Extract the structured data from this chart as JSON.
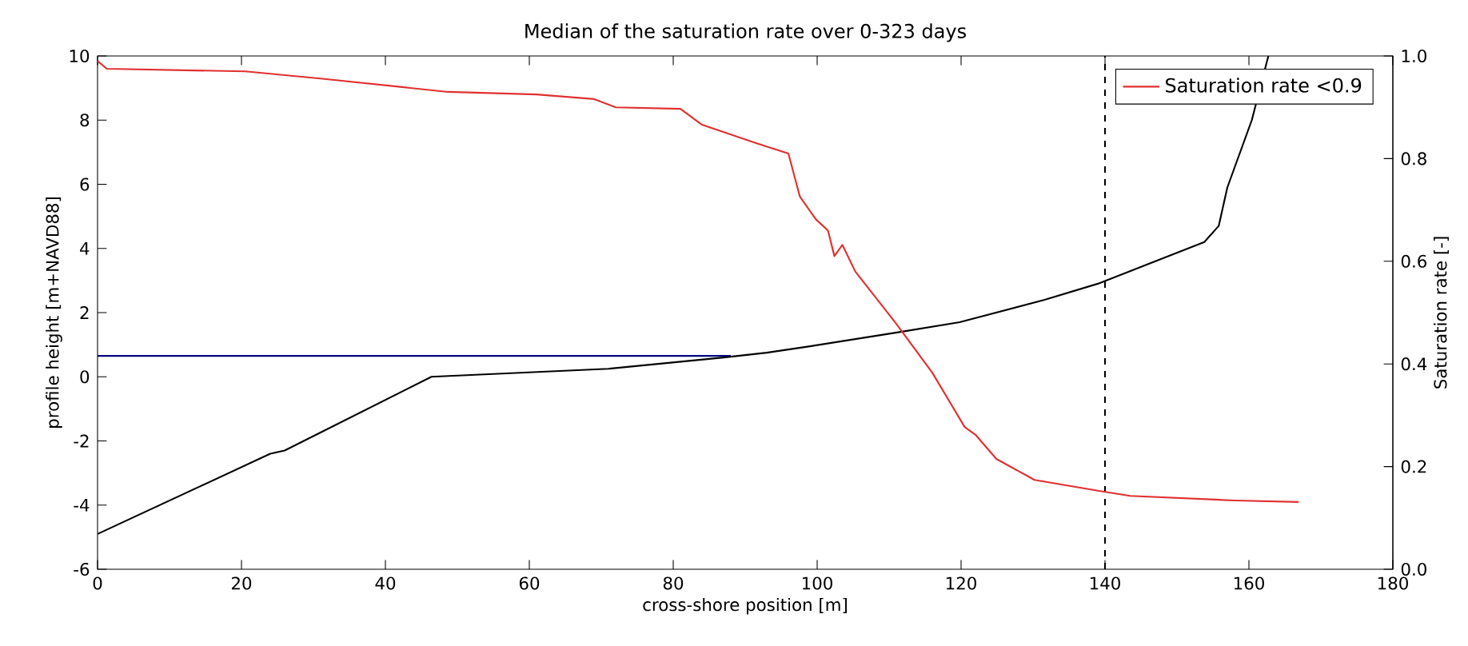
{
  "chart_data": {
    "type": "line",
    "title": "Median of the saturation rate over 0-323 days",
    "xlabel": "cross-shore position [m]",
    "ylabel": "profile height [m+NAVD88]",
    "y2label": "Saturation rate [-]",
    "xlim": [
      0,
      180
    ],
    "xticks": [
      0,
      20,
      40,
      60,
      80,
      100,
      120,
      140,
      160,
      180
    ],
    "ylim": [
      -6,
      10
    ],
    "yticks": [
      -6,
      -4,
      -2,
      0,
      2,
      4,
      6,
      8,
      10
    ],
    "y2lim": [
      0,
      1
    ],
    "y2ticks": [
      {
        "value": 0,
        "label": "0.0"
      },
      {
        "value": 0.2,
        "label": "0.2"
      },
      {
        "value": 0.4,
        "label": "0.4"
      },
      {
        "value": 0.6,
        "label": "0.6"
      },
      {
        "value": 0.8,
        "label": "0.8"
      },
      {
        "value": 1,
        "label": "1.0"
      }
    ],
    "legend": "top right",
    "grid": false,
    "marker": "none",
    "ref_lines": [
      {
        "axis": "x",
        "value": 140,
        "color": "#000000",
        "line_style": "dashed"
      }
    ],
    "series": [
      {
        "color": "#000080",
        "x": [
          0,
          88
        ],
        "values": [
          0.65,
          0.65
        ]
      },
      {
        "color": "#000000",
        "x": [
          0,
          24,
          26,
          46.4,
          71,
          87,
          93,
          99,
          111.6,
          119.8,
          131.6,
          139,
          147,
          153.8,
          155.8,
          157,
          160.4,
          162.7
        ],
        "values": [
          -4.9,
          -2.4,
          -2.3,
          0.0,
          0.25,
          0.6,
          0.75,
          0.95,
          1.4,
          1.7,
          2.4,
          2.9,
          3.6,
          4.2,
          4.7,
          5.9,
          8.0,
          10
        ]
      },
      {
        "name": "Saturation rate <0.9",
        "color": "#e03030",
        "axis": "y2",
        "x": [
          0,
          1.3,
          20.5,
          31,
          48.7,
          61,
          69,
          72,
          81,
          84,
          91.6,
          96,
          97.6,
          99.8,
          101.5,
          102.4,
          103.5,
          105.3,
          110.9,
          116,
          120.5,
          122,
          124.9,
          130.2,
          139,
          143.5,
          158,
          166.9
        ],
        "values": [
          0.99,
          0.975,
          0.97,
          0.956,
          0.93,
          0.925,
          0.916,
          0.9,
          0.897,
          0.866,
          0.83,
          0.81,
          0.726,
          0.682,
          0.66,
          0.61,
          0.632,
          0.58,
          0.48,
          0.383,
          0.277,
          0.262,
          0.215,
          0.174,
          0.153,
          0.143,
          0.134,
          0.131
        ]
      }
    ]
  }
}
